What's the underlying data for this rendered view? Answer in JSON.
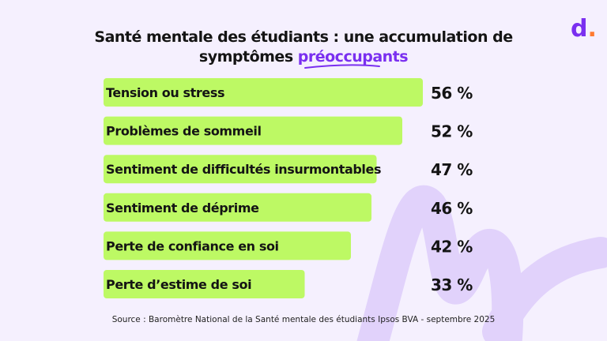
{
  "chart_data": {
    "type": "bar",
    "orientation": "horizontal",
    "title": "Santé mentale des étudiants : une accumulation de symptômes préoccupants",
    "title_parts": {
      "main": "Santé mentale des étudiants : une accumulation de",
      "line2": "symptômes",
      "highlight": "préoccupants"
    },
    "categories": [
      "Tension ou stress",
      "Problèmes de sommeil",
      "Sentiment de difficultés insurmontables",
      "Sentiment de déprime",
      "Perte de confiance en soi",
      "Perte d’estime de soi"
    ],
    "values": [
      56,
      52,
      47,
      46,
      42,
      33
    ],
    "value_labels": [
      "56 %",
      "52 %",
      "47 %",
      "46 %",
      "42 %",
      "33 %"
    ],
    "unit": "%",
    "grid": false,
    "colors": {
      "bar": "#bdf964",
      "accent": "#7a2ff0",
      "background": "#f5f0fe",
      "decoration": "#e1d2fb"
    }
  },
  "logo": {
    "letter": "d",
    "dot": "."
  },
  "source": "Source : Baromètre National  de la Santé mentale des étudiants Ipsos BVA - septembre 2025"
}
